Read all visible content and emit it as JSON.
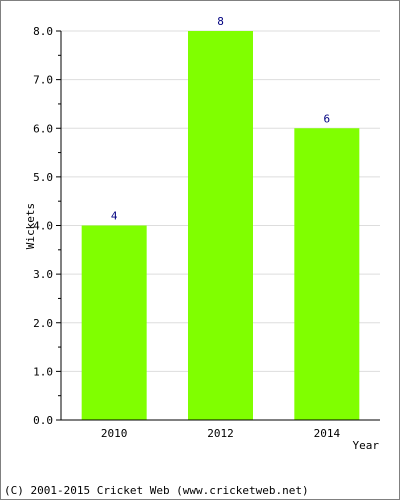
{
  "chart_data": {
    "type": "bar",
    "categories": [
      "2010",
      "2012",
      "2014"
    ],
    "values": [
      4,
      8,
      6
    ],
    "data_labels": [
      "4",
      "8",
      "6"
    ],
    "title": "",
    "xlabel": "Year",
    "ylabel": "Wickets",
    "ylim": [
      0,
      8
    ],
    "y_ticks": [
      "0.0",
      "1.0",
      "2.0",
      "3.0",
      "4.0",
      "5.0",
      "6.0",
      "7.0",
      "8.0"
    ],
    "grid": true,
    "legend": "none",
    "colors": {
      "bar": "#80ff00",
      "grid": "#dddddd",
      "data_label": "#000080"
    }
  },
  "footer": {
    "text": "(C) 2001-2015 Cricket Web (www.cricketweb.net)"
  }
}
